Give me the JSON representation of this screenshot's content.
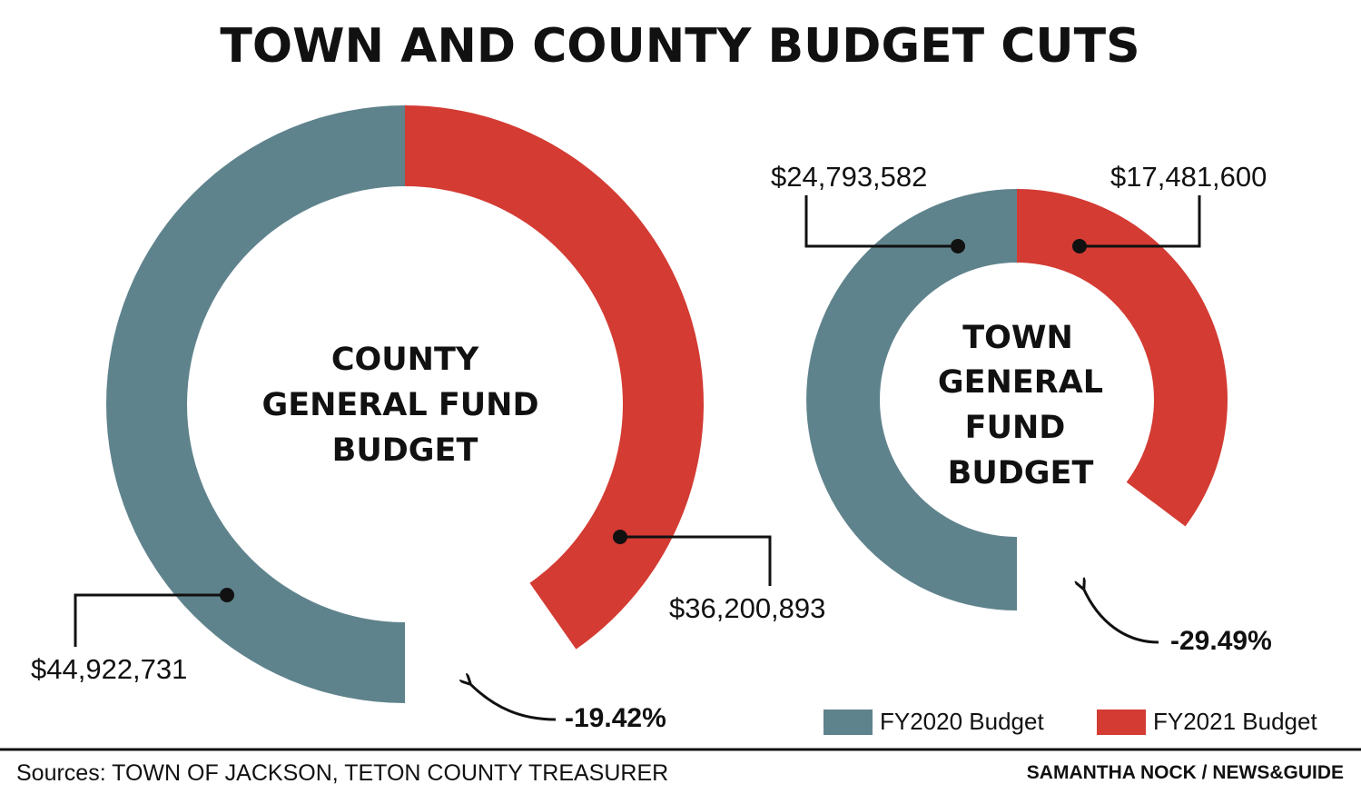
{
  "title": "TOWN AND COUNTY BUDGET CUTS",
  "colors": {
    "fy2020": "#5f838c",
    "fy2021": "#d33b33",
    "text": "#111111",
    "rule": "#111111"
  },
  "chart_data": [
    {
      "type": "pie",
      "title_lines": [
        "COUNTY",
        "GENERAL FUND",
        "BUDGET"
      ],
      "series": [
        {
          "name": "FY2020 Budget",
          "value": 44922731,
          "label": "$44,922,731"
        },
        {
          "name": "FY2021 Budget",
          "value": 36200893,
          "label": "$36,200,893"
        }
      ],
      "change_label": "-19.42%"
    },
    {
      "type": "pie",
      "title_lines": [
        "TOWN",
        "GENERAL",
        "FUND",
        "BUDGET"
      ],
      "series": [
        {
          "name": "FY2020 Budget",
          "value": 24793582,
          "label": "$24,793,582"
        },
        {
          "name": "FY2021 Budget",
          "value": 17481600,
          "label": "$17,481,600"
        }
      ],
      "change_label": "-29.49%"
    }
  ],
  "legend": [
    {
      "label": "FY2020 Budget"
    },
    {
      "label": "FY2021 Budget"
    }
  ],
  "footer": {
    "sources": "Sources: TOWN OF JACKSON, TETON COUNTY TREASURER",
    "credit": "SAMANTHA NOCK / NEWS&GUIDE"
  }
}
